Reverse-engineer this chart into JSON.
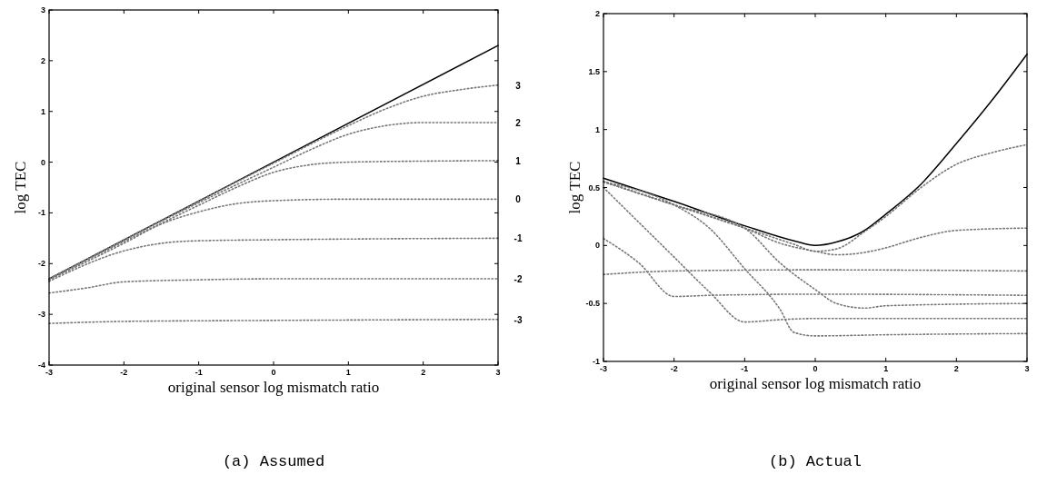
{
  "chart_data": [
    {
      "type": "line",
      "title": "(a) Assumed",
      "xlabel": "original sensor log mismatch ratio",
      "ylabel": "log TEC",
      "xlim": [
        -3,
        3
      ],
      "ylim": [
        -4,
        3
      ],
      "xticks": [
        -3,
        -2,
        -1,
        0,
        1,
        2,
        3
      ],
      "yticks": [
        -4,
        -3,
        -2,
        -1,
        0,
        1,
        2,
        3
      ],
      "grid": false,
      "legend": false,
      "series": [
        {
          "color": "#000000",
          "line_style": "solid",
          "x": [
            -3,
            3
          ],
          "values": [
            -2.3,
            2.3
          ]
        },
        {
          "name": "3",
          "color": "#777777",
          "line_style": "dotted",
          "x": [
            -3,
            0,
            1,
            1.5,
            2,
            2.5,
            3
          ],
          "values": [
            -2.3,
            -0.02,
            0.72,
            1.05,
            1.3,
            1.43,
            1.52
          ]
        },
        {
          "name": "2",
          "color": "#777777",
          "line_style": "dotted",
          "x": [
            -3,
            -1,
            0,
            0.5,
            1,
            1.5,
            2,
            3
          ],
          "values": [
            -2.3,
            -0.8,
            -0.1,
            0.25,
            0.55,
            0.72,
            0.78,
            0.78
          ]
        },
        {
          "name": "1",
          "color": "#777777",
          "line_style": "dotted",
          "x": [
            -3,
            -1,
            -0.5,
            0,
            0.5,
            1,
            2,
            3
          ],
          "values": [
            -2.3,
            -0.85,
            -0.5,
            -0.2,
            -0.05,
            0,
            0.02,
            0.03
          ]
        },
        {
          "name": "0",
          "color": "#777777",
          "line_style": "dotted",
          "x": [
            -3,
            -2,
            -1.5,
            -1,
            -0.5,
            0,
            1,
            3
          ],
          "values": [
            -2.32,
            -1.6,
            -1.22,
            -0.98,
            -0.82,
            -0.76,
            -0.73,
            -0.73
          ]
        },
        {
          "name": "-1",
          "color": "#777777",
          "line_style": "dotted",
          "x": [
            -3,
            -2,
            -1.5,
            -1,
            0,
            3
          ],
          "values": [
            -2.35,
            -1.75,
            -1.6,
            -1.55,
            -1.53,
            -1.5
          ]
        },
        {
          "name": "-2",
          "color": "#777777",
          "line_style": "dotted",
          "x": [
            -3,
            -2.5,
            -2,
            -1,
            0,
            3
          ],
          "values": [
            -2.58,
            -2.48,
            -2.36,
            -2.32,
            -2.3,
            -2.3
          ]
        },
        {
          "name": "-3",
          "color": "#777777",
          "line_style": "dotted",
          "x": [
            -3,
            -2,
            0,
            3
          ],
          "values": [
            -3.18,
            -3.14,
            -3.12,
            -3.1
          ]
        }
      ]
    },
    {
      "type": "line",
      "title": "(b) Actual",
      "xlabel": "original sensor log mismatch ratio",
      "ylabel": "log TEC",
      "xlim": [
        -3,
        3
      ],
      "ylim": [
        -1,
        2
      ],
      "xticks": [
        -3,
        -2,
        -1,
        0,
        1,
        2,
        3
      ],
      "yticks": [
        -1,
        -0.5,
        0,
        0.5,
        1,
        1.5,
        2
      ],
      "grid": false,
      "legend": false,
      "series": [
        {
          "color": "#000000",
          "line_style": "solid",
          "x": [
            -3,
            -2,
            -1,
            -0.3,
            0,
            0.3,
            0.7,
            1,
            1.5,
            2,
            2.5,
            3
          ],
          "values": [
            0.58,
            0.38,
            0.17,
            0.04,
            0,
            0.03,
            0.13,
            0.27,
            0.53,
            0.88,
            1.25,
            1.65
          ]
        },
        {
          "color": "#777777",
          "line_style": "dotted",
          "x": [
            -3,
            -2,
            -1,
            -0.3,
            0,
            0.3,
            0.7,
            1,
            1.5,
            2,
            2.5,
            3
          ],
          "values": [
            0.55,
            0.35,
            0.15,
            0.01,
            -0.05,
            -0.03,
            0.12,
            0.25,
            0.5,
            0.7,
            0.8,
            0.87
          ]
        },
        {
          "color": "#777777",
          "line_style": "dotted",
          "x": [
            -3,
            -2,
            -1,
            -0.5,
            0,
            0.3,
            0.7,
            1,
            1.5,
            2,
            3
          ],
          "values": [
            0.55,
            0.35,
            0.15,
            0.02,
            -0.05,
            -0.08,
            -0.06,
            -0.02,
            0.07,
            0.13,
            0.15
          ]
        },
        {
          "color": "#777777",
          "line_style": "dotted",
          "x": [
            -3,
            -2,
            0,
            3
          ],
          "values": [
            -0.25,
            -0.22,
            -0.21,
            -0.22
          ]
        },
        {
          "color": "#777777",
          "line_style": "dotted",
          "x": [
            -3,
            -2.5,
            -2,
            -1.5,
            0,
            3
          ],
          "values": [
            0.06,
            -0.15,
            -0.44,
            -0.43,
            -0.42,
            -0.43
          ]
        },
        {
          "color": "#777777",
          "line_style": "dotted",
          "x": [
            -3,
            -2.5,
            -2,
            -1.5,
            -1,
            -0.5,
            0,
            3
          ],
          "values": [
            0.5,
            0.2,
            -0.1,
            -0.4,
            -0.66,
            -0.64,
            -0.63,
            -0.63
          ]
        },
        {
          "color": "#777777",
          "line_style": "dotted",
          "x": [
            -3,
            -2,
            -1.5,
            -1,
            -0.5,
            -0.3,
            0,
            1,
            3
          ],
          "values": [
            0.55,
            0.35,
            0.15,
            -0.2,
            -0.55,
            -0.75,
            -0.78,
            -0.77,
            -0.76
          ]
        },
        {
          "color": "#777777",
          "line_style": "dotted",
          "x": [
            -3,
            -2,
            -1,
            -0.5,
            0,
            0.3,
            0.7,
            1,
            3
          ],
          "values": [
            0.55,
            0.35,
            0.15,
            -0.15,
            -0.38,
            -0.5,
            -0.54,
            -0.52,
            -0.5
          ]
        }
      ]
    }
  ]
}
